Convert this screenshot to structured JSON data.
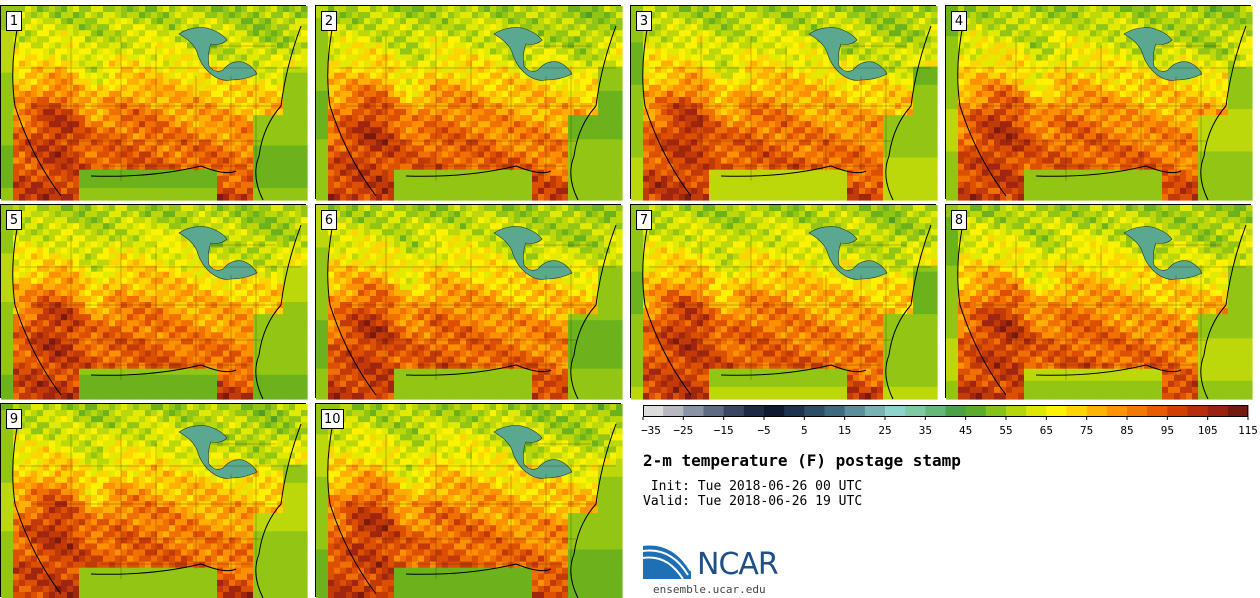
{
  "members": [
    "1",
    "2",
    "3",
    "4",
    "5",
    "6",
    "7",
    "8",
    "9",
    "10"
  ],
  "colorbar": {
    "colors": [
      "#dcdcdc",
      "#b8b8c0",
      "#8a93a6",
      "#5f6a83",
      "#3a4662",
      "#1e2a44",
      "#0f1a30",
      "#1d3350",
      "#2e4d66",
      "#3f6a7d",
      "#5a8e9a",
      "#78b2b2",
      "#8fd4cc",
      "#7fcaa2",
      "#63b87a",
      "#4aa244",
      "#5cac2c",
      "#86c21a",
      "#b4d60a",
      "#dce800",
      "#fff200",
      "#ffd400",
      "#ffb400",
      "#ff9400",
      "#f57800",
      "#e85c00",
      "#d24000",
      "#b82c10",
      "#9a2210",
      "#741a10"
    ],
    "tick_labels": [
      "−35",
      "−25",
      "−15",
      "−5",
      "5",
      "15",
      "25",
      "35",
      "45",
      "55",
      "65",
      "75",
      "85",
      "95",
      "105",
      "115"
    ]
  },
  "title": "2-m temperature (F) postage stamp",
  "init_line": " Init: Tue 2018-06-26 00 UTC",
  "valid_line": "Valid: Tue 2018-06-26 19 UTC",
  "logo_text": "NCAR",
  "site": "ensemble.ucar.edu"
}
